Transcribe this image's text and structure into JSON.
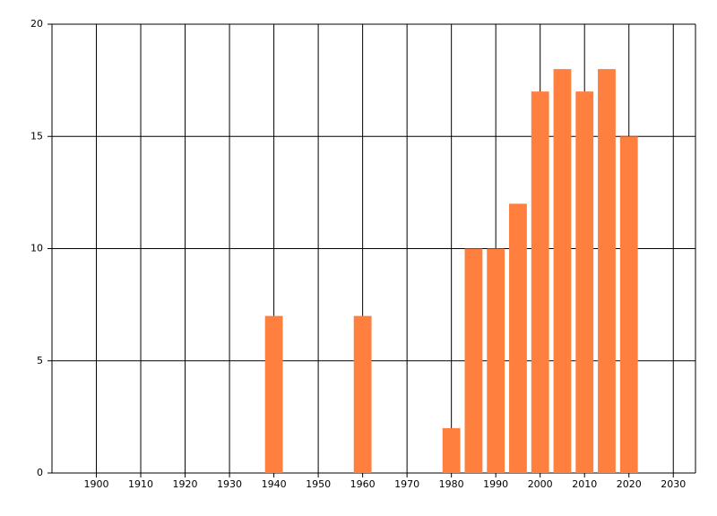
{
  "chart_data": {
    "type": "bar",
    "x": [
      1940,
      1960,
      1980,
      1985,
      1990,
      1995,
      2000,
      2005,
      2010,
      2015,
      2020
    ],
    "values": [
      7,
      7,
      2,
      10,
      10,
      12,
      17,
      18,
      17,
      18,
      15
    ],
    "color": "#ff7f3f",
    "xlim": [
      1890,
      2035
    ],
    "xticks": [
      1900,
      1910,
      1920,
      1930,
      1940,
      1950,
      1960,
      1970,
      1980,
      1990,
      2000,
      2010,
      2020,
      2030
    ],
    "ylim": [
      0,
      20
    ],
    "yticks": [
      0,
      5,
      10,
      15,
      20
    ],
    "grid": true
  }
}
